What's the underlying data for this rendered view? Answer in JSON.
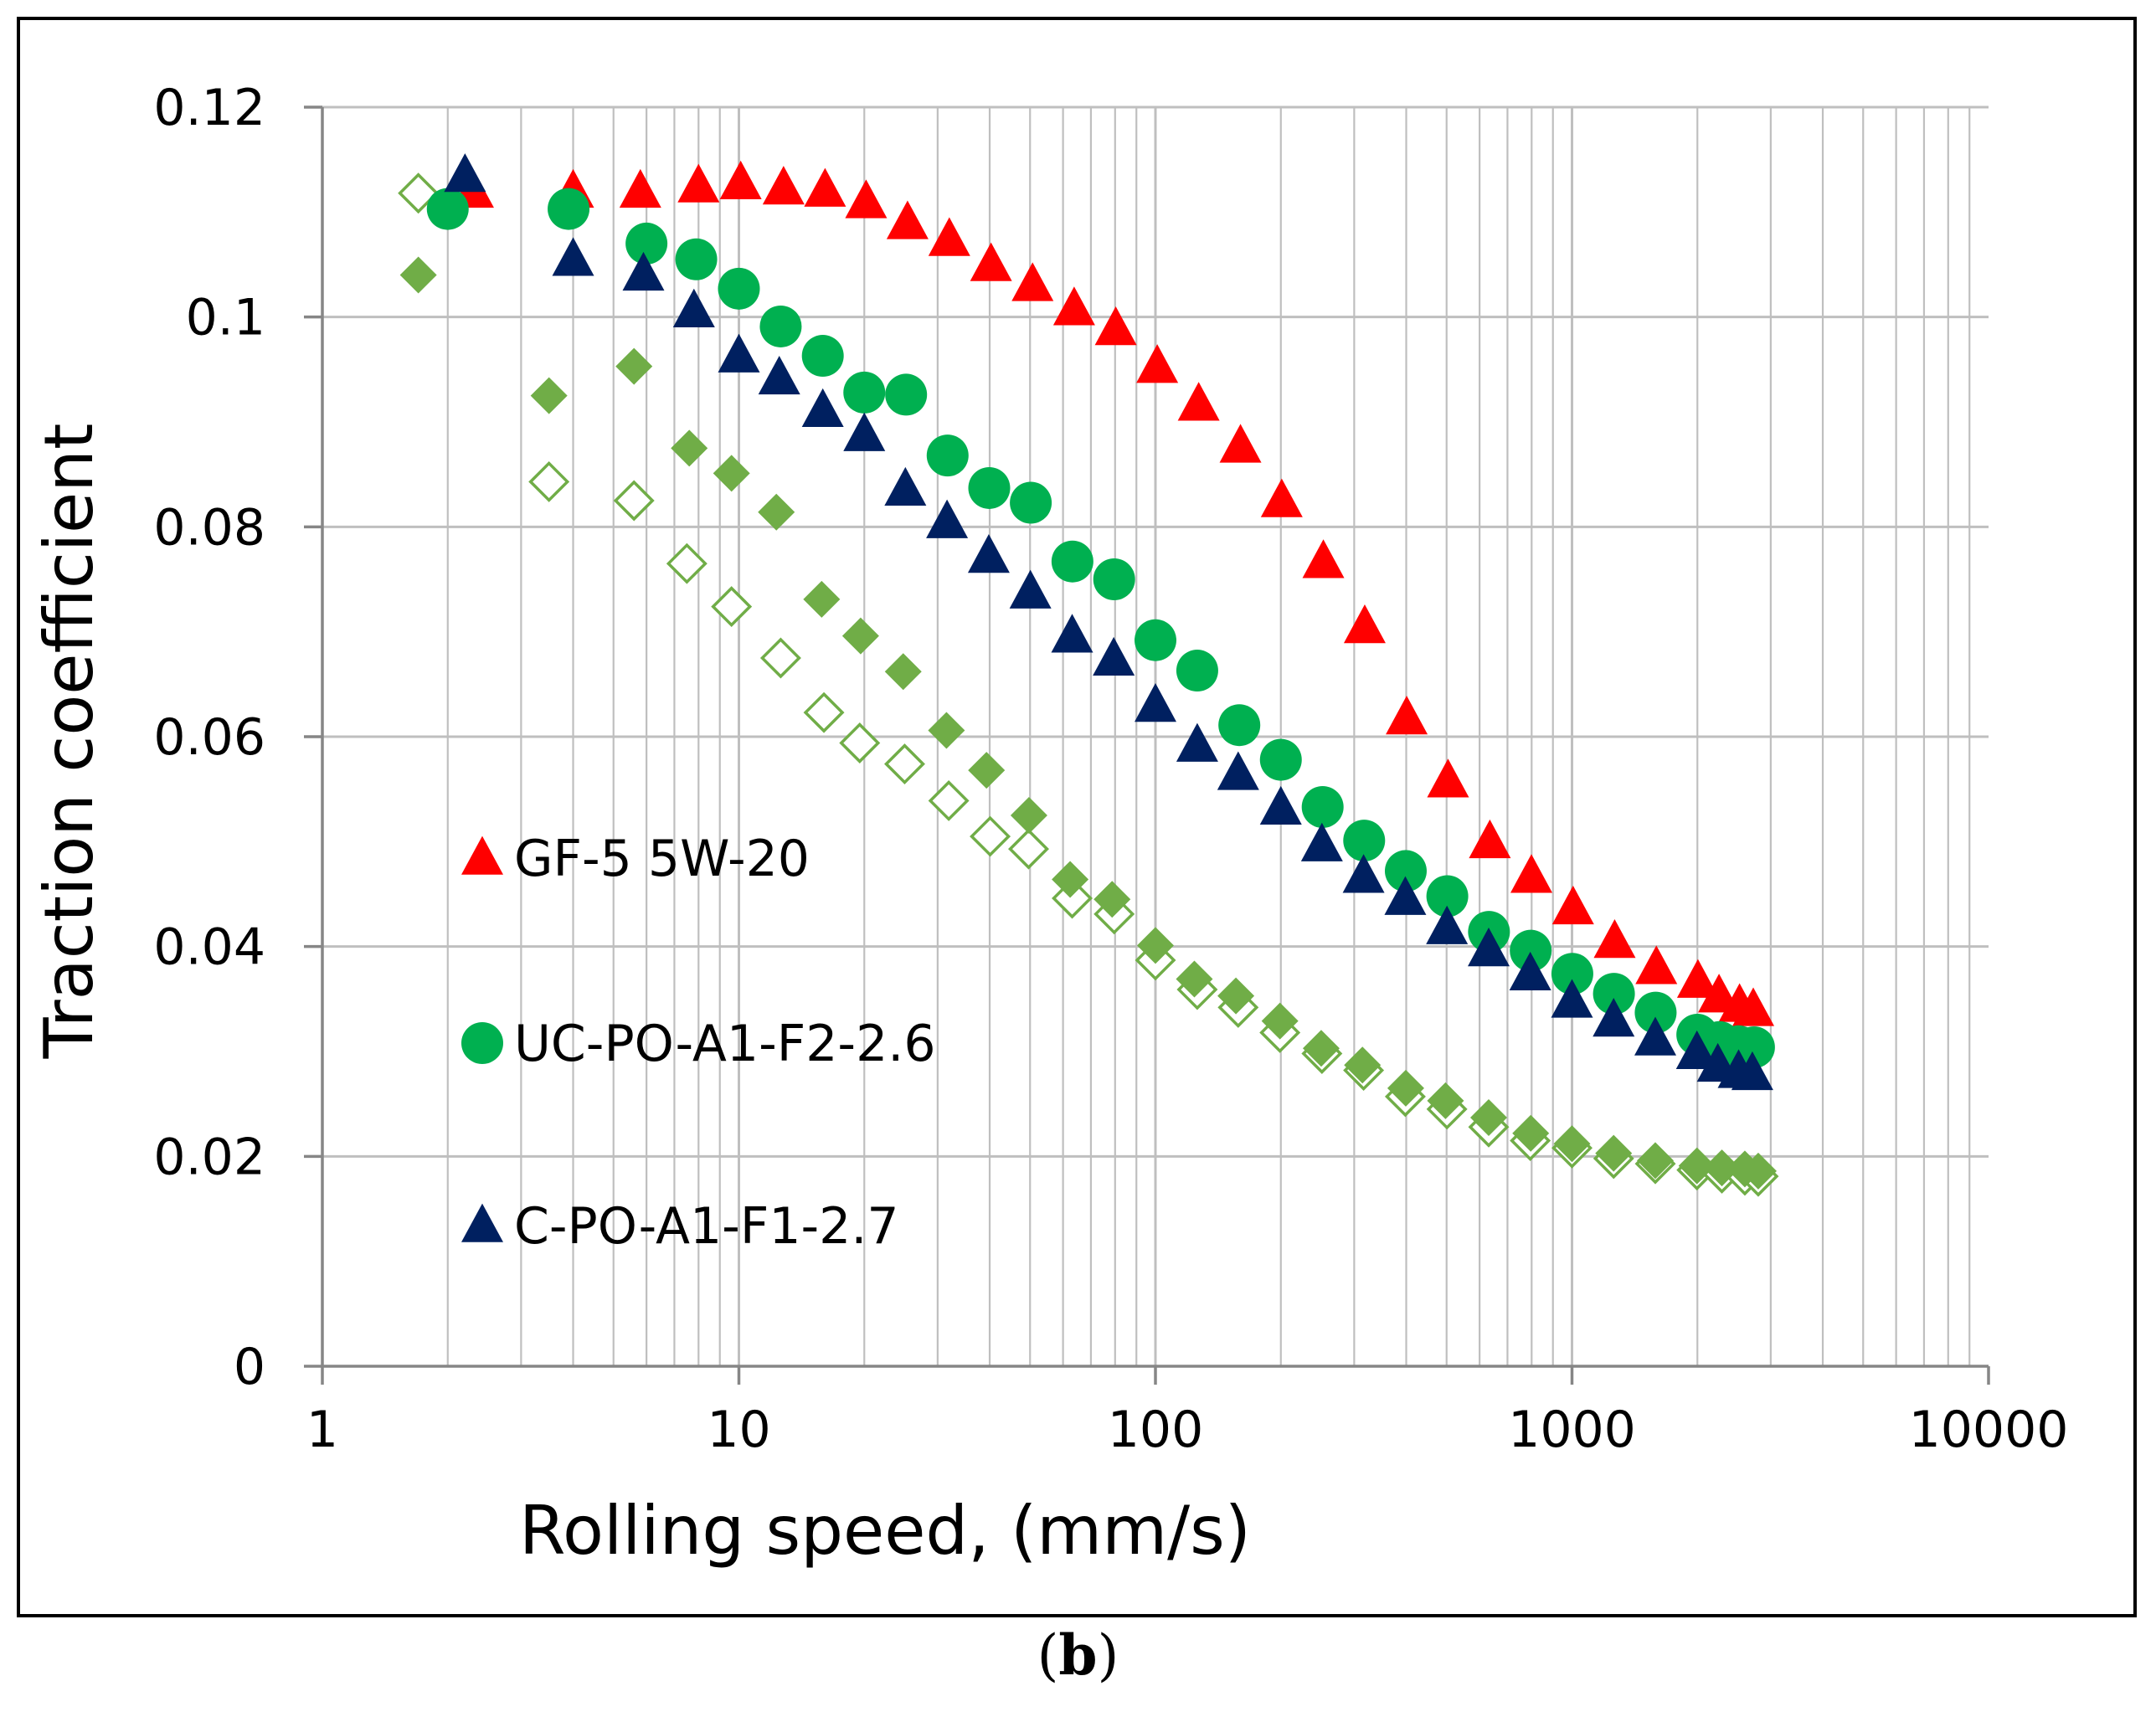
{
  "panel_label": {
    "open": "(",
    "letter": "b",
    "close": ")"
  },
  "chart_data": {
    "type": "scatter",
    "title": "",
    "xlabel": "Rolling speed,  (mm/s)",
    "ylabel": "Traction coefficient",
    "x_scale": "log",
    "xlim": [
      1,
      10000
    ],
    "ylim": [
      0,
      0.12
    ],
    "x_ticks": [
      1,
      10,
      100,
      1000,
      10000
    ],
    "x_tick_labels": [
      "1",
      "10",
      "100",
      "1000",
      "10000"
    ],
    "y_ticks": [
      0,
      0.02,
      0.04,
      0.06,
      0.08,
      0.1,
      0.12
    ],
    "y_tick_labels": [
      "0",
      "0.02",
      "0.04",
      "0.06",
      "0.08",
      "0.1",
      "0.12"
    ],
    "grid": true,
    "legend_position": "left-inside",
    "colors": {
      "gf5": "#ff0000",
      "uc": "#00b050",
      "c": "#002060",
      "green_solid": "#70ad47",
      "green_open": "#70ad47",
      "grid": "#bfbfbf",
      "axis": "#868686",
      "frame": "#000000"
    },
    "series": [
      {
        "name": "GF-5 5W-20",
        "marker": "triangle",
        "in_legend": true,
        "color": "#ff0000",
        "x": [
          2.3,
          4.0,
          5.8,
          8.0,
          10.1,
          12.8,
          16.1,
          20.2,
          25.4,
          32.0,
          40.3,
          50.7,
          63.8,
          80.3,
          101,
          127,
          160,
          201,
          253,
          318,
          401,
          504,
          635,
          799,
          1006,
          1266,
          1594,
          2006,
          2254,
          2525,
          2724
        ],
        "y": [
          0.112,
          0.112,
          0.112,
          0.1125,
          0.1128,
          0.1123,
          0.1121,
          0.111,
          0.109,
          0.1074,
          0.105,
          0.1031,
          0.1008,
          0.0989,
          0.0953,
          0.0917,
          0.0877,
          0.0825,
          0.0767,
          0.0705,
          0.0618,
          0.0558,
          0.05,
          0.0467,
          0.0437,
          0.0405,
          0.038,
          0.0367,
          0.0353,
          0.0344,
          0.034
        ]
      },
      {
        "name": "UC-PO-A1-F2-2.6",
        "marker": "circle",
        "in_legend": true,
        "color": "#00b050",
        "x": [
          2.0,
          3.9,
          6.0,
          7.9,
          10.0,
          12.6,
          15.9,
          20.0,
          25.2,
          31.7,
          39.9,
          50.2,
          63.2,
          79.6,
          100,
          126,
          159,
          200,
          252,
          317,
          399,
          502,
          632,
          796,
          1002,
          1261,
          1588,
          1999,
          2259,
          2509,
          2735
        ],
        "y": [
          0.1103,
          0.1103,
          0.107,
          0.1055,
          0.1027,
          0.0991,
          0.0963,
          0.0928,
          0.0926,
          0.0868,
          0.0837,
          0.0823,
          0.0767,
          0.075,
          0.0692,
          0.0663,
          0.0611,
          0.0578,
          0.0533,
          0.0501,
          0.0472,
          0.0448,
          0.0414,
          0.0396,
          0.0374,
          0.0355,
          0.0337,
          0.0316,
          0.0309,
          0.0305,
          0.0304
        ]
      },
      {
        "name": "C-PO-A1-F1-2.7",
        "marker": "triangle",
        "in_legend": true,
        "color": "#002060",
        "x": [
          2.2,
          4.0,
          5.9,
          7.8,
          10.0,
          12.5,
          15.9,
          20.0,
          25.1,
          31.6,
          39.8,
          50.1,
          63.1,
          79.4,
          100,
          126,
          158,
          200,
          251,
          316,
          398,
          501,
          631,
          794,
          1000,
          1259,
          1585,
          1995,
          2239,
          2512,
          2710
        ],
        "y": [
          0.1135,
          0.1055,
          0.1041,
          0.1006,
          0.0963,
          0.0942,
          0.0911,
          0.0888,
          0.0836,
          0.0805,
          0.0772,
          0.0738,
          0.0696,
          0.0674,
          0.063,
          0.0592,
          0.0565,
          0.0532,
          0.0497,
          0.0467,
          0.0446,
          0.0418,
          0.0397,
          0.0374,
          0.0348,
          0.033,
          0.0312,
          0.0299,
          0.0287,
          0.0281,
          0.0279
        ]
      },
      {
        "name": "green solid diamonds",
        "marker": "diamond",
        "in_legend": false,
        "color": "#70ad47",
        "x": [
          1.7,
          3.5,
          5.6,
          7.6,
          9.6,
          12.3,
          15.8,
          19.6,
          24.8,
          31.5,
          39.3,
          49.7,
          62.4,
          78.7,
          100,
          124,
          156,
          199,
          250,
          314,
          399,
          497,
          631,
          796,
          1000,
          1259,
          1585,
          1995,
          2290,
          2600,
          2800
        ],
        "y": [
          0.104,
          0.0925,
          0.0953,
          0.0875,
          0.0851,
          0.0814,
          0.0731,
          0.0696,
          0.0662,
          0.0606,
          0.0568,
          0.0525,
          0.0464,
          0.0445,
          0.0401,
          0.0369,
          0.0353,
          0.0329,
          0.0303,
          0.0287,
          0.0265,
          0.0253,
          0.0237,
          0.0222,
          0.0212,
          0.0203,
          0.0196,
          0.0191,
          0.0189,
          0.0188,
          0.0186
        ]
      },
      {
        "name": "green open diamonds",
        "marker": "diamond-open",
        "in_legend": false,
        "color": "#70ad47",
        "x": [
          1.7,
          3.5,
          5.6,
          7.5,
          9.6,
          12.6,
          16.0,
          19.5,
          25.0,
          31.9,
          40.1,
          49.6,
          63.1,
          79.6,
          100,
          126,
          158,
          199,
          251,
          316,
          398,
          501,
          631,
          794,
          1000,
          1259,
          1585,
          1995,
          2290,
          2600,
          2800
        ],
        "y": [
          0.1118,
          0.0843,
          0.0825,
          0.0765,
          0.0724,
          0.0675,
          0.0623,
          0.0594,
          0.0574,
          0.0539,
          0.0505,
          0.0493,
          0.0446,
          0.0431,
          0.0387,
          0.0359,
          0.0342,
          0.0318,
          0.0298,
          0.0282,
          0.0257,
          0.0245,
          0.0228,
          0.0215,
          0.0208,
          0.0198,
          0.0193,
          0.0187,
          0.0184,
          0.0182,
          0.0181
        ]
      }
    ]
  }
}
